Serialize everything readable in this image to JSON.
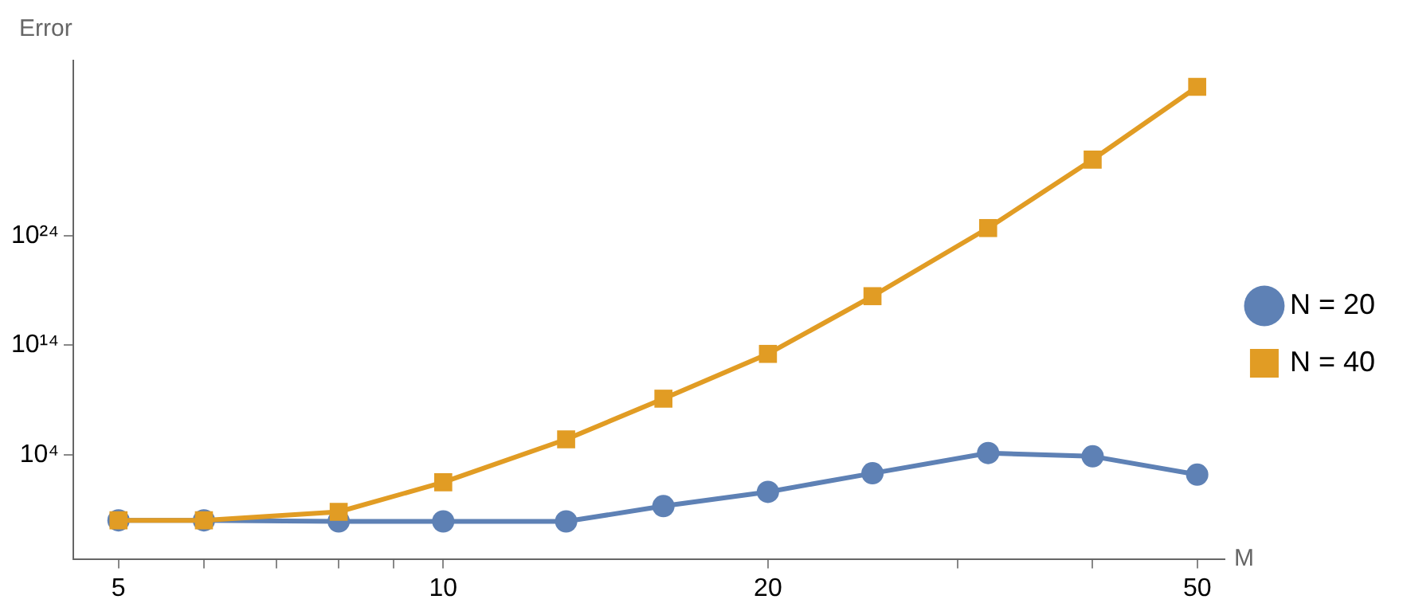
{
  "chart_data": {
    "type": "line",
    "xlabel": "M",
    "ylabel": "Error",
    "log": "xy",
    "grid": false,
    "legend": "right",
    "line_style": "solid",
    "x": [
      5,
      6,
      8,
      10,
      13,
      16,
      20,
      25,
      32,
      40,
      50
    ],
    "xlim": [
      4.54,
      53
    ],
    "ylim": [
      3e-06,
      1e+40
    ],
    "xticks": [
      5,
      {
        "value": 6,
        "label": null
      },
      {
        "value": 7,
        "label": null
      },
      {
        "value": 8,
        "label": null
      },
      {
        "value": 9,
        "label": null
      },
      10,
      20,
      {
        "value": 30,
        "label": null
      },
      {
        "value": 40,
        "label": null
      },
      50
    ],
    "yticks": [
      {
        "value": 10000.0,
        "label": "10⁴"
      },
      {
        "value": 100000000000000.0,
        "label": "10¹⁴"
      },
      {
        "value": 1e+24,
        "label": "10²⁴"
      }
    ],
    "series": [
      {
        "name": "N = 20",
        "color": "#5e81b5",
        "marker": "circle",
        "values": [
          0.01,
          0.01,
          0.008,
          0.008,
          0.008,
          0.2,
          4,
          200,
          14000.0,
          7000.0,
          150
        ]
      },
      {
        "name": "N = 40",
        "color": "#e19c24",
        "marker": "square",
        "values": [
          0.01,
          0.01,
          0.06,
          30,
          250000.0,
          1300000000.0,
          16000000000000.0,
          3e+18,
          5e+24,
          9e+30,
          4e+37
        ]
      }
    ]
  }
}
